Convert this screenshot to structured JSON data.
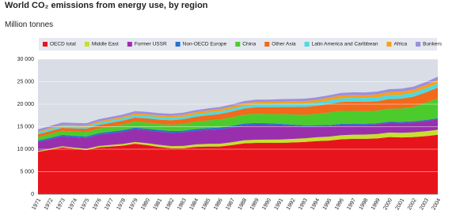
{
  "chart_data": {
    "type": "stacked-area",
    "title": "World CO₂ emissions from energy use, by region",
    "subtitle": "Million tonnes",
    "categories": [
      "1971",
      "1972",
      "1973",
      "1974",
      "1975",
      "1976",
      "1977",
      "1978",
      "1979",
      "1980",
      "1981",
      "1982",
      "1983",
      "1984",
      "1985",
      "1986",
      "1987",
      "1988",
      "1989",
      "1990",
      "1991",
      "1992",
      "1993",
      "1994",
      "1995",
      "1996",
      "1997",
      "1998",
      "1999",
      "2000",
      "2001",
      "2002",
      "2003",
      "2004"
    ],
    "ylim": [
      0,
      30000
    ],
    "yticks": [
      0,
      {
        "value": 5000,
        "label": "5 000"
      },
      {
        "value": 10000,
        "label": "10 000"
      },
      {
        "value": 15000,
        "label": "15 000"
      },
      {
        "value": 20000,
        "label": "20 000"
      },
      {
        "value": 25000,
        "label": "25 000"
      },
      {
        "value": 30000,
        "label": "30 000"
      }
    ],
    "grid": true,
    "legend": "top",
    "series": [
      {
        "name": "OECD total",
        "color": "#e8141c",
        "values": [
          9400,
          9900,
          10400,
          10100,
          9800,
          10400,
          10600,
          10800,
          11200,
          10900,
          10500,
          10200,
          10200,
          10500,
          10600,
          10600,
          10900,
          11300,
          11400,
          11400,
          11400,
          11500,
          11600,
          11800,
          11900,
          12200,
          12300,
          12300,
          12400,
          12700,
          12600,
          12700,
          12900,
          13200
        ]
      },
      {
        "name": "Middle East",
        "color": "#c6e02c",
        "values": [
          200,
          220,
          250,
          260,
          280,
          310,
          340,
          370,
          400,
          430,
          460,
          490,
          520,
          550,
          580,
          610,
          640,
          670,
          700,
          720,
          740,
          780,
          820,
          860,
          880,
          900,
          920,
          950,
          970,
          1000,
          1030,
          1060,
          1090,
          1130
        ]
      },
      {
        "name": "Former USSR",
        "color": "#9a2fae",
        "values": [
          2000,
          2100,
          2200,
          2300,
          2400,
          2500,
          2600,
          2700,
          2800,
          2850,
          2900,
          2950,
          3000,
          3050,
          3100,
          3200,
          3250,
          3300,
          3350,
          3300,
          3200,
          2900,
          2600,
          2400,
          2300,
          2250,
          2200,
          2150,
          2150,
          2200,
          2200,
          2200,
          2250,
          2300
        ]
      },
      {
        "name": "Non-OECD Europe",
        "color": "#2a6fd1",
        "values": [
          300,
          310,
          320,
          330,
          340,
          350,
          360,
          370,
          380,
          390,
          390,
          390,
          390,
          390,
          400,
          400,
          400,
          400,
          380,
          340,
          300,
          280,
          270,
          260,
          260,
          260,
          250,
          250,
          240,
          240,
          250,
          250,
          260,
          260
        ]
      },
      {
        "name": "China",
        "color": "#4ccc2c",
        "values": [
          800,
          850,
          900,
          950,
          1000,
          1050,
          1150,
          1250,
          1350,
          1350,
          1350,
          1400,
          1500,
          1600,
          1700,
          1800,
          1900,
          2000,
          2050,
          2050,
          2150,
          2250,
          2350,
          2500,
          2800,
          2900,
          2850,
          2800,
          2800,
          2850,
          2950,
          3200,
          3800,
          4400
        ]
      },
      {
        "name": "Other Asia",
        "color": "#f26a1b",
        "values": [
          600,
          630,
          660,
          690,
          720,
          760,
          800,
          840,
          880,
          920,
          960,
          1000,
          1050,
          1100,
          1150,
          1200,
          1270,
          1350,
          1430,
          1500,
          1580,
          1660,
          1740,
          1820,
          1900,
          1980,
          2050,
          2050,
          2100,
          2150,
          2200,
          2250,
          2300,
          2400
        ]
      },
      {
        "name": "Latin America and Caribbean",
        "color": "#4fd8e2",
        "values": [
          400,
          420,
          450,
          460,
          470,
          490,
          510,
          530,
          560,
          570,
          570,
          560,
          560,
          570,
          580,
          600,
          620,
          630,
          640,
          650,
          670,
          700,
          720,
          750,
          780,
          800,
          830,
          850,
          860,
          880,
          880,
          880,
          900,
          930
        ]
      },
      {
        "name": "Africa",
        "color": "#f4a21c",
        "values": [
          250,
          260,
          270,
          280,
          300,
          320,
          340,
          360,
          380,
          400,
          420,
          440,
          460,
          480,
          500,
          510,
          520,
          540,
          560,
          560,
          570,
          580,
          590,
          600,
          620,
          640,
          660,
          670,
          680,
          690,
          710,
          730,
          760,
          790
        ]
      },
      {
        "name": "Bunkers",
        "color": "#9b8ee2",
        "values": [
          450,
          470,
          480,
          470,
          460,
          460,
          470,
          480,
          490,
          480,
          460,
          440,
          430,
          430,
          440,
          450,
          460,
          480,
          490,
          500,
          510,
          520,
          530,
          530,
          540,
          560,
          570,
          580,
          600,
          620,
          620,
          640,
          660,
          700
        ]
      }
    ]
  }
}
